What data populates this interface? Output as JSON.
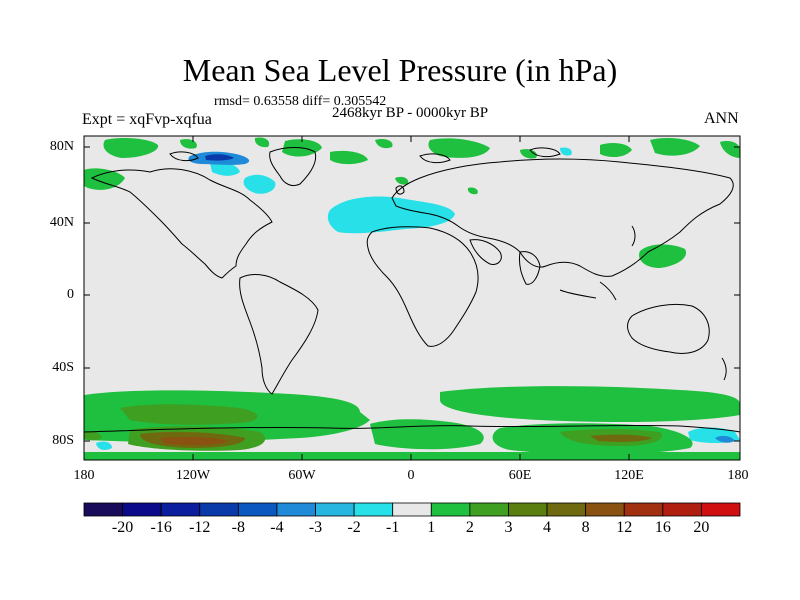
{
  "title": "Mean Sea Level Pressure (in hPa)",
  "stats": "rmsd= 0.63558 diff= 0.305542",
  "period": "2468kyr BP - 0000kyr BP",
  "experiment": "Expt = xqFvp-xqfua",
  "season": "ANN",
  "lat_ticks": [
    "80N",
    "40N",
    "0",
    "40S",
    "80S"
  ],
  "lon_ticks": [
    "180",
    "120W",
    "60W",
    "0",
    "60E",
    "120E",
    "180"
  ],
  "legend": {
    "labels": [
      "-20",
      "-16",
      "-12",
      "-8",
      "-4",
      "-3",
      "-2",
      "-1",
      "1",
      "2",
      "3",
      "4",
      "8",
      "12",
      "16",
      "20"
    ],
    "colors": [
      "#1a0a5a",
      "#0a0a8a",
      "#0a1e9e",
      "#0a3aaa",
      "#0a58c0",
      "#1f8ad8",
      "#27b6e0",
      "#28e0e8",
      "#e8e8e8",
      "#1fbf3f",
      "#3f9f20",
      "#5a7f10",
      "#6f6a10",
      "#8a5210",
      "#a03010",
      "#b01e10",
      "#d01010"
    ]
  },
  "colors": {
    "land_bg": "#e8e8e8",
    "cyan": "#28e0e8",
    "green": "#1fbf3f",
    "dark_green": "#3f9f20",
    "olive": "#6f6a10",
    "brown": "#8a5210",
    "blue": "#0a3aaa"
  }
}
